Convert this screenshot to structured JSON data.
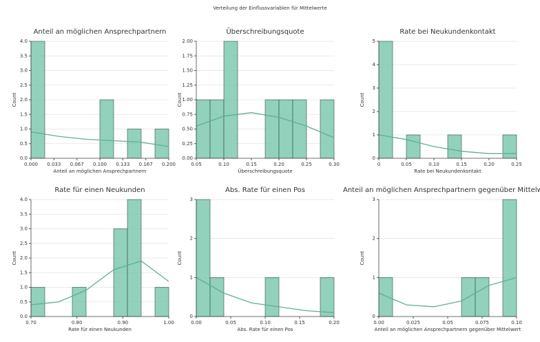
{
  "title": "Verteilung der Einflussvariablen für Mittelwerte",
  "chart_data": [
    {
      "type": "histogram",
      "title": "Anteil an möglichen Ansprechpartnern",
      "xlabel": "Anteil an möglichen Ansprechpartnern",
      "ylabel": "Count",
      "color": "#7fc9b0",
      "line_color": "#5fae94",
      "grid": true,
      "bins": [
        0,
        0.02,
        0.04,
        0.06,
        0.08,
        0.1,
        0.12,
        0.14,
        0.16,
        0.18,
        0.2
      ],
      "counts": [
        4,
        0,
        0,
        0,
        0,
        2,
        0,
        1,
        0,
        1
      ],
      "xlim": [
        0,
        0.2
      ],
      "xticks": [
        {
          "value": 0,
          "label": "0.000"
        },
        {
          "value": 0.0333,
          "label": "0.033"
        },
        {
          "value": 0.0667,
          "label": "0.067"
        },
        {
          "value": 0.1,
          "label": "0.100"
        },
        {
          "value": 0.1333,
          "label": "0.133"
        },
        {
          "value": 0.1667,
          "label": "0.167"
        },
        {
          "value": 0.2,
          "label": "0.200"
        }
      ],
      "ylim": [
        0,
        4
      ],
      "yticks": [
        {
          "value": 0,
          "label": "0.0"
        },
        {
          "value": 0.5,
          "label": "0.5"
        },
        {
          "value": 1,
          "label": "1.0"
        },
        {
          "value": 1.5,
          "label": "1.5"
        },
        {
          "value": 2,
          "label": "2.0"
        },
        {
          "value": 2.5,
          "label": "2.5"
        },
        {
          "value": 3,
          "label": "3.0"
        },
        {
          "value": 3.5,
          "label": "3.5"
        },
        {
          "value": 4,
          "label": "4.0"
        }
      ],
      "kde": {
        "x": [
          0,
          0.04,
          0.08,
          0.12,
          0.16,
          0.2
        ],
        "values": [
          0.9,
          0.75,
          0.65,
          0.6,
          0.55,
          0.4
        ]
      }
    },
    {
      "type": "histogram",
      "title": "Überschreibungsquote",
      "xlabel": "Überschreibungsquote",
      "ylabel": "Count",
      "color": "#7fc9b0",
      "line_color": "#5fae94",
      "grid": true,
      "bins": [
        0.05,
        0.075,
        0.1,
        0.125,
        0.15,
        0.175,
        0.2,
        0.225,
        0.25,
        0.275,
        0.3
      ],
      "counts": [
        1,
        1,
        2,
        0,
        0,
        1,
        1,
        1,
        0,
        1
      ],
      "xlim": [
        0.05,
        0.3
      ],
      "xticks": [
        {
          "value": 0.05,
          "label": "0.05"
        },
        {
          "value": 0.1,
          "label": "0.10"
        },
        {
          "value": 0.15,
          "label": "0.15"
        },
        {
          "value": 0.2,
          "label": "0.20"
        },
        {
          "value": 0.25,
          "label": "0.25"
        },
        {
          "value": 0.3,
          "label": "0.30"
        }
      ],
      "ylim": [
        0,
        2
      ],
      "yticks": [
        {
          "value": 0,
          "label": "0.00"
        },
        {
          "value": 0.25,
          "label": "0.25"
        },
        {
          "value": 0.5,
          "label": "0.50"
        },
        {
          "value": 0.75,
          "label": "0.75"
        },
        {
          "value": 1,
          "label": "1.00"
        },
        {
          "value": 1.25,
          "label": "1.25"
        },
        {
          "value": 1.5,
          "label": "1.50"
        },
        {
          "value": 1.75,
          "label": "1.75"
        },
        {
          "value": 2,
          "label": "2.00"
        }
      ],
      "kde": {
        "x": [
          0.05,
          0.1,
          0.15,
          0.2,
          0.25,
          0.3
        ],
        "values": [
          0.55,
          0.72,
          0.78,
          0.7,
          0.55,
          0.35
        ]
      }
    },
    {
      "type": "histogram",
      "title": "Rate bei Neukundenkontakt",
      "xlabel": "Rate bei Neukundenkontakt",
      "ylabel": "Count",
      "color": "#7fc9b0",
      "line_color": "#5fae94",
      "grid": true,
      "bins": [
        0,
        0.025,
        0.05,
        0.075,
        0.1,
        0.125,
        0.15,
        0.175,
        0.2,
        0.225,
        0.25
      ],
      "counts": [
        5,
        0,
        1,
        0,
        0,
        1,
        0,
        0,
        0,
        1
      ],
      "xlim": [
        0,
        0.25
      ],
      "xticks": [
        0,
        {
          "value": 0.05,
          "label": "0.05"
        },
        {
          "value": 0.1,
          "label": "0.10"
        },
        {
          "value": 0.15,
          "label": "0.15"
        },
        {
          "value": 0.2,
          "label": "0.20"
        },
        {
          "value": 0.25,
          "label": "0.25"
        }
      ],
      "ylim": [
        0,
        5
      ],
      "yticks": [
        0,
        1,
        2,
        3,
        4,
        5
      ],
      "kde": {
        "x": [
          0,
          0.05,
          0.1,
          0.15,
          0.2,
          0.25
        ],
        "values": [
          1.0,
          0.8,
          0.5,
          0.3,
          0.2,
          0.2
        ]
      }
    },
    {
      "type": "histogram",
      "title": "Rate für einen Neukunden",
      "xlabel": "Rate für einen Neukunden",
      "ylabel": "Count",
      "color": "#7fc9b0",
      "line_color": "#5fae94",
      "grid": true,
      "bins": [
        0.7,
        0.73,
        0.76,
        0.79,
        0.82,
        0.85,
        0.88,
        0.91,
        0.94,
        0.97,
        1.0
      ],
      "counts": [
        1,
        0,
        0,
        1,
        0,
        0,
        3,
        4,
        0,
        1
      ],
      "xlim": [
        0.7,
        1.0
      ],
      "xticks": [
        {
          "value": 0.7,
          "label": "0.70"
        },
        {
          "value": 0.8,
          "label": "0.80"
        },
        {
          "value": 0.9,
          "label": "0.90"
        },
        {
          "value": 1.0,
          "label": "1.00"
        }
      ],
      "ylim": [
        0,
        4
      ],
      "yticks": [
        {
          "value": 0,
          "label": "0.0"
        },
        {
          "value": 0.5,
          "label": "0.5"
        },
        {
          "value": 1,
          "label": "1.0"
        },
        {
          "value": 1.5,
          "label": "1.5"
        },
        {
          "value": 2,
          "label": "2.0"
        },
        {
          "value": 2.5,
          "label": "2.5"
        },
        {
          "value": 3,
          "label": "3.0"
        },
        {
          "value": 3.5,
          "label": "3.5"
        },
        {
          "value": 4,
          "label": "4.0"
        }
      ],
      "kde": {
        "x": [
          0.7,
          0.76,
          0.82,
          0.88,
          0.94,
          1.0
        ],
        "values": [
          0.4,
          0.5,
          0.9,
          1.6,
          1.9,
          1.2
        ]
      }
    },
    {
      "type": "histogram",
      "title": "Abs. Rate für einen Pos",
      "xlabel": "Abs. Rate für einen Pos",
      "ylabel": "Count",
      "color": "#7fc9b0",
      "line_color": "#5fae94",
      "grid": true,
      "bins": [
        0,
        0.02,
        0.04,
        0.06,
        0.08,
        0.1,
        0.12,
        0.14,
        0.16,
        0.18,
        0.2
      ],
      "counts": [
        3,
        1,
        0,
        0,
        0,
        1,
        0,
        0,
        0,
        1
      ],
      "xlim": [
        0,
        0.2
      ],
      "xticks": [
        {
          "value": 0,
          "label": "0.00"
        },
        {
          "value": 0.05,
          "label": "0.05"
        },
        {
          "value": 0.1,
          "label": "0.10"
        },
        {
          "value": 0.15,
          "label": "0.15"
        },
        {
          "value": 0.2,
          "label": "0.20"
        }
      ],
      "ylim": [
        0,
        3
      ],
      "yticks": [
        0,
        1,
        2,
        3
      ],
      "kde": {
        "x": [
          0,
          0.04,
          0.08,
          0.12,
          0.16,
          0.2
        ],
        "values": [
          1.0,
          0.6,
          0.35,
          0.25,
          0.15,
          0.1
        ]
      }
    },
    {
      "type": "histogram",
      "title": "Anteil an möglichen Ansprechpartnern gegenüber Mittelwert",
      "xlabel": "Anteil an möglichen Ansprechpartnern gegenüber Mittelwert",
      "ylabel": "Count",
      "color": "#7fc9b0",
      "line_color": "#5fae94",
      "grid": true,
      "bins": [
        0,
        0.01,
        0.02,
        0.03,
        0.04,
        0.05,
        0.06,
        0.07,
        0.08,
        0.09,
        0.1
      ],
      "counts": [
        1,
        0,
        0,
        0,
        0,
        0,
        1,
        1,
        0,
        3
      ],
      "xlim": [
        0,
        0.1
      ],
      "xticks": [
        {
          "value": 0,
          "label": "0.00"
        },
        {
          "value": 0.025,
          "label": "0.025"
        },
        {
          "value": 0.05,
          "label": "0.05"
        },
        {
          "value": 0.075,
          "label": "0.075"
        },
        {
          "value": 0.1,
          "label": "0.10"
        }
      ],
      "ylim": [
        0,
        3
      ],
      "yticks": [
        0,
        1,
        2,
        3
      ],
      "kde": {
        "x": [
          0,
          0.02,
          0.04,
          0.06,
          0.08,
          0.1
        ],
        "values": [
          0.6,
          0.3,
          0.25,
          0.4,
          0.8,
          1.0
        ]
      }
    }
  ]
}
